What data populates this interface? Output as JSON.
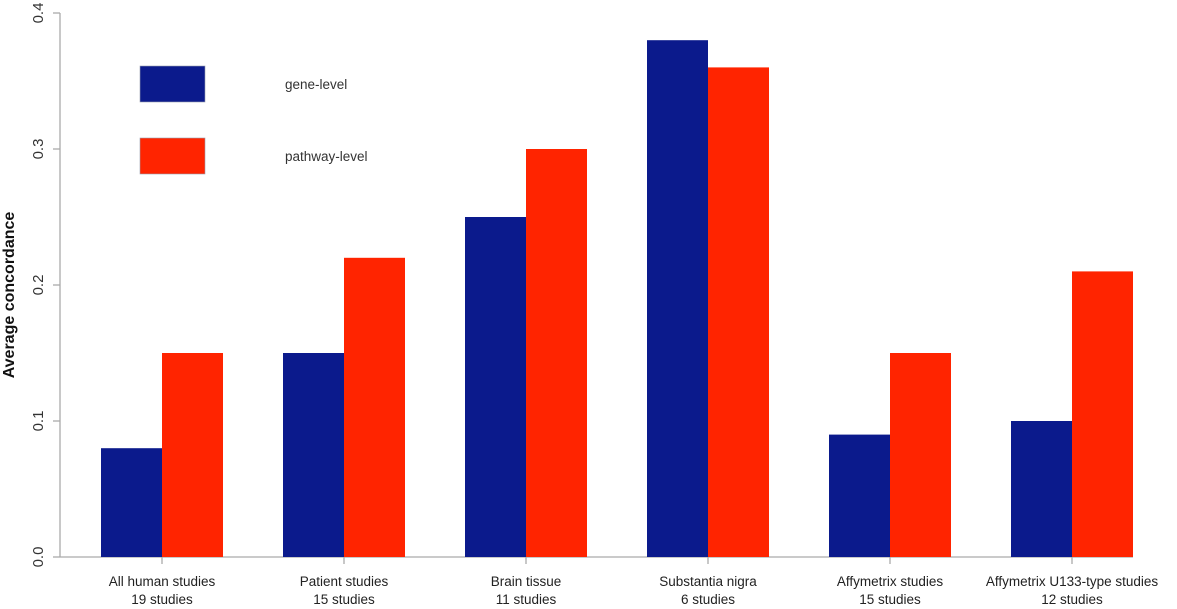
{
  "chart_data": {
    "type": "bar",
    "title": "",
    "xlabel": "",
    "ylabel": "Average concordance",
    "ylim": [
      0.0,
      0.4
    ],
    "yticks": [
      "0.0",
      "0.1",
      "0.2",
      "0.3",
      "0.4"
    ],
    "ytick_values": [
      0.0,
      0.1,
      0.2,
      0.3,
      0.4
    ],
    "grid": false,
    "legend_position": "top-left",
    "categories": [
      {
        "name": "All human studies",
        "sub": "19 studies"
      },
      {
        "name": "Patient studies",
        "sub": "15 studies"
      },
      {
        "name": "Brain tissue",
        "sub": "11 studies"
      },
      {
        "name": "Substantia nigra",
        "sub": "6 studies"
      },
      {
        "name": "Affymetrix studies",
        "sub": "15 studies"
      },
      {
        "name": "Affymetrix U133-type studies",
        "sub": "12 studies"
      }
    ],
    "series": [
      {
        "name": "gene-level",
        "color": "#0b1a8c",
        "values": [
          0.08,
          0.15,
          0.25,
          0.38,
          0.09,
          0.1
        ]
      },
      {
        "name": "pathway-level",
        "color": "#ff2400",
        "values": [
          0.15,
          0.22,
          0.3,
          0.36,
          0.15,
          0.21
        ]
      }
    ]
  }
}
